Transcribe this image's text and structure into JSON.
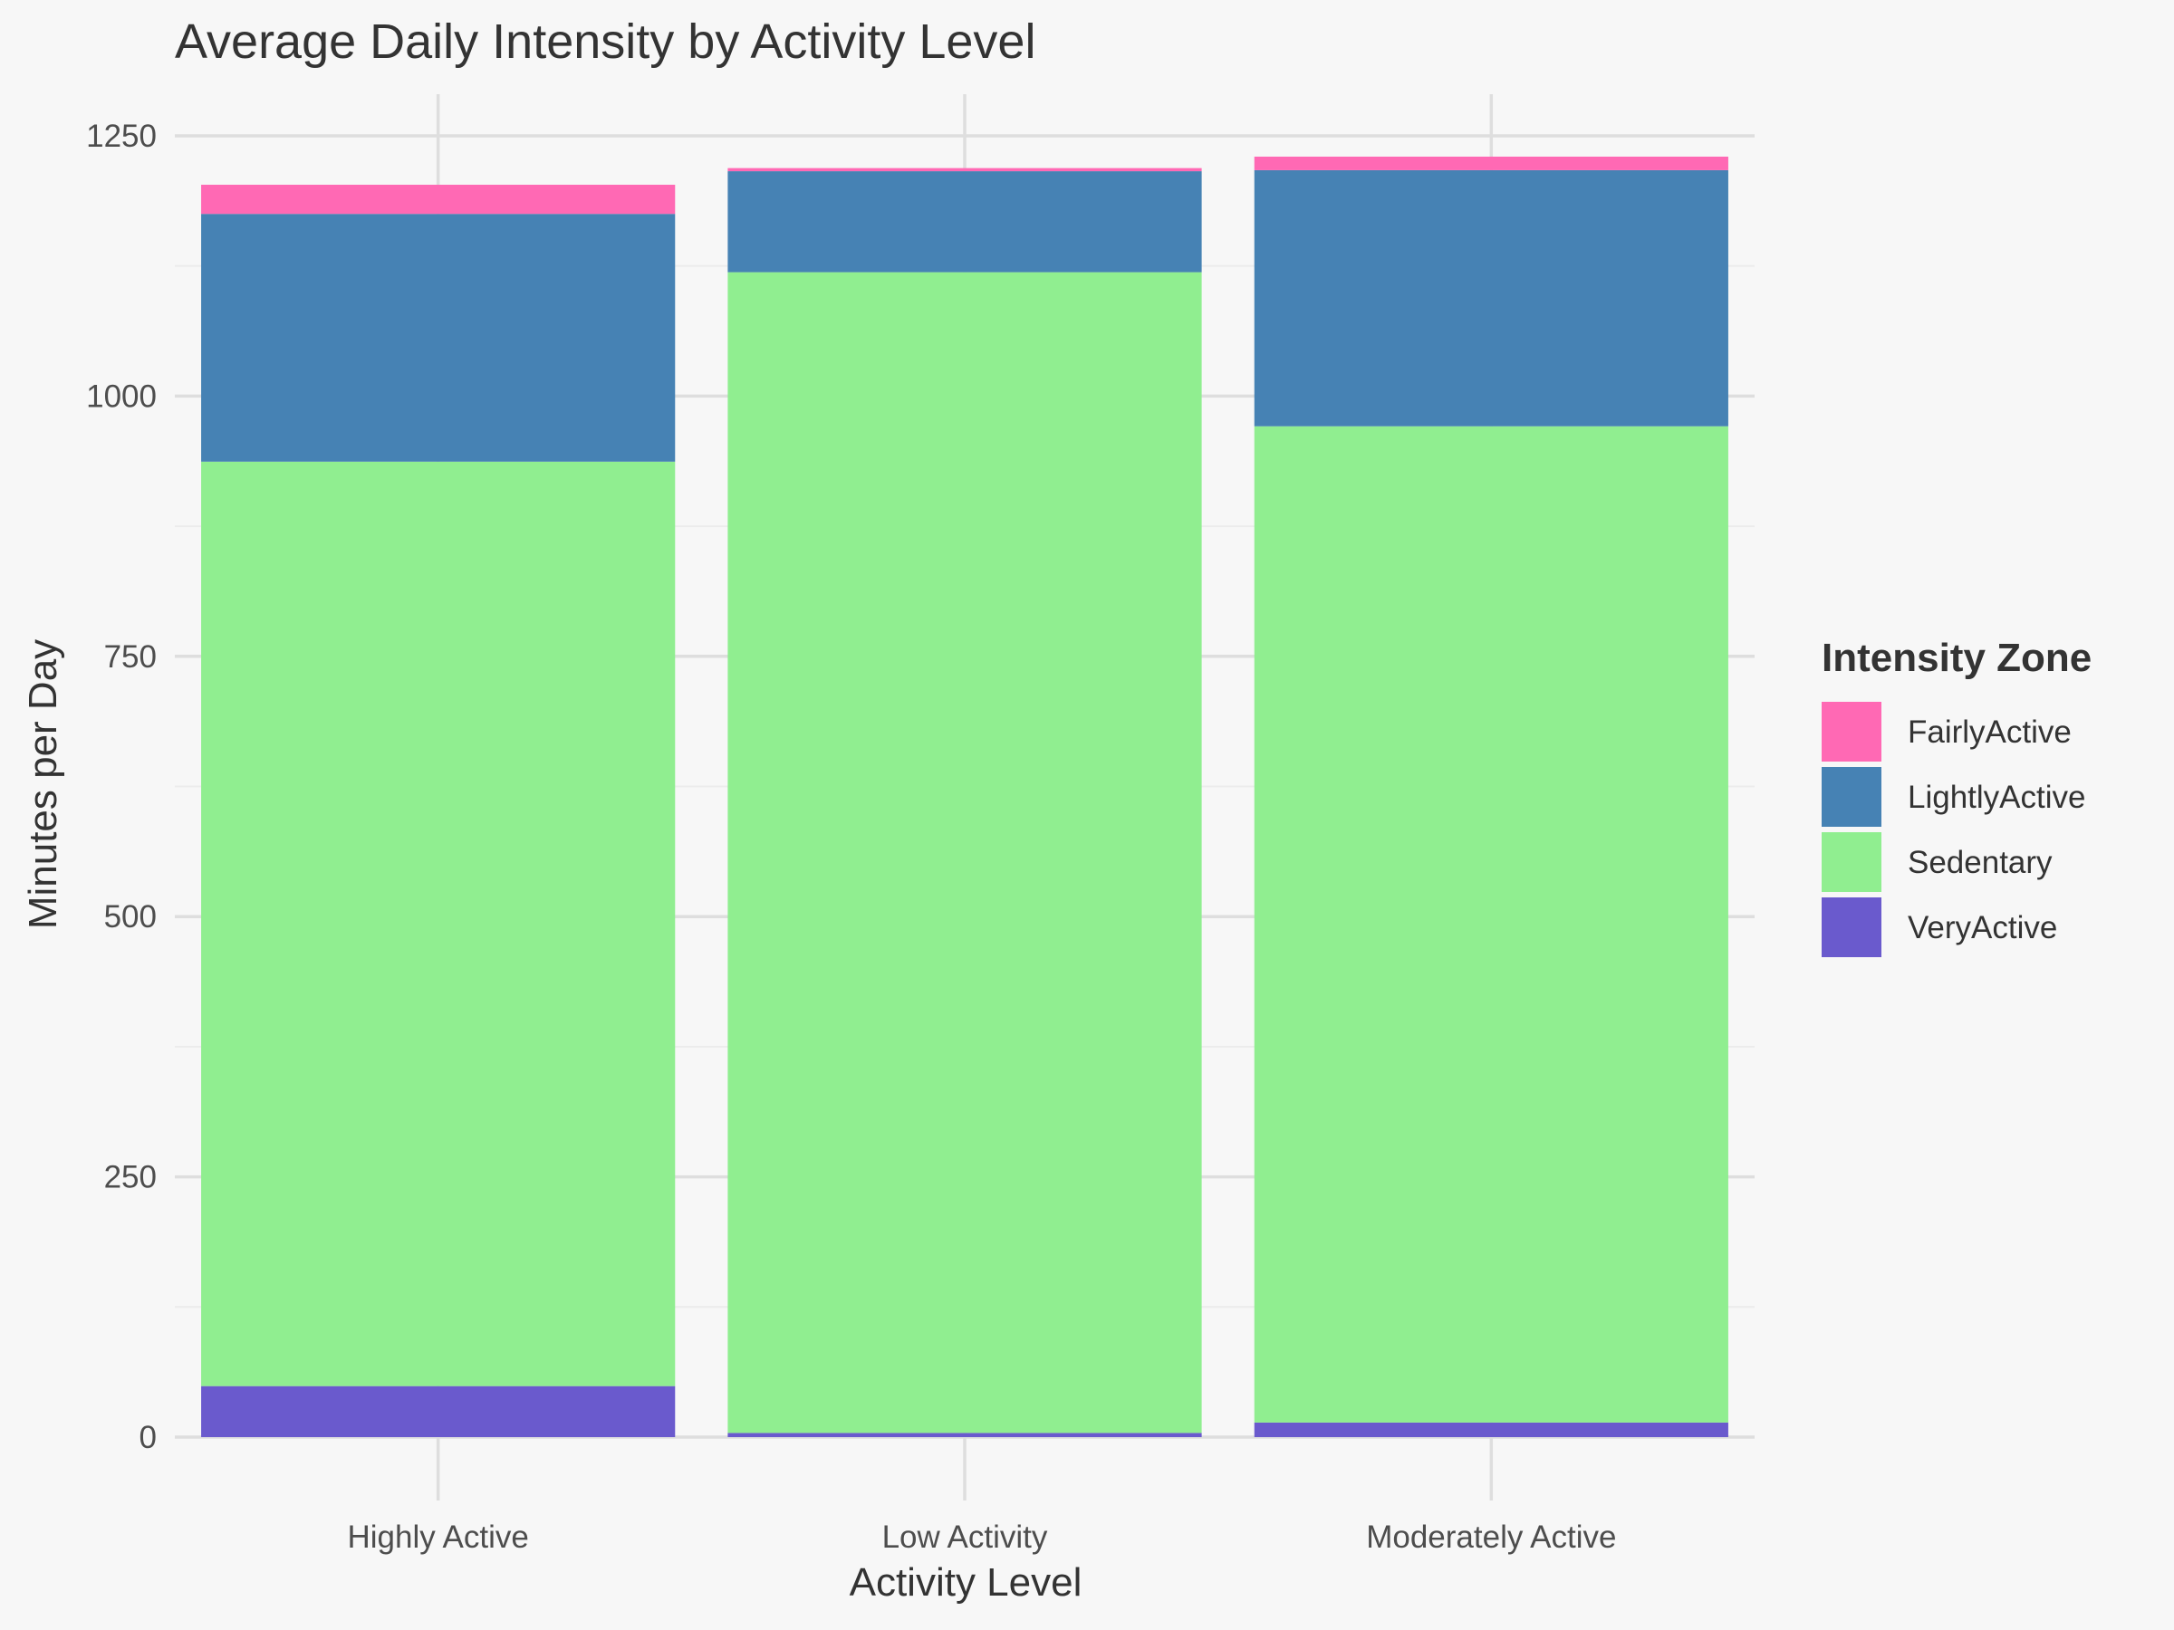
{
  "chart_data": {
    "type": "bar",
    "stacked": true,
    "title": "Average Daily Intensity by Activity Level",
    "xlabel": "Activity Level",
    "ylabel": "Minutes per Day",
    "categories": [
      "Highly Active",
      "Low Activity",
      "Moderately Active"
    ],
    "ylim": [
      0,
      1290
    ],
    "yticks": [
      0,
      250,
      500,
      750,
      1000,
      1250
    ],
    "ytick_labels": [
      "0",
      "250",
      "500",
      "750",
      "1000",
      "1250"
    ],
    "grid": true,
    "stack_order": [
      "VeryActive",
      "Sedentary",
      "LightlyActive",
      "FairlyActive"
    ],
    "series": [
      {
        "name": "FairlyActive",
        "color": "#ff69b4",
        "values": [
          28,
          3,
          13
        ]
      },
      {
        "name": "LightlyActive",
        "color": "#4682b4",
        "values": [
          238,
          97,
          246
        ]
      },
      {
        "name": "Sedentary",
        "color": "#90ee90",
        "values": [
          888,
          1115,
          957
        ]
      },
      {
        "name": "VeryActive",
        "color": "#6a5acd",
        "values": [
          49,
          4,
          14
        ]
      }
    ],
    "legend": {
      "title": "Intensity Zone",
      "position": "right"
    }
  },
  "colors": {
    "background": "#f7f7f7",
    "grid_major": "#dedede",
    "grid_minor": "#ececec",
    "text": "#333333",
    "tick_text": "#4d4d4d"
  }
}
